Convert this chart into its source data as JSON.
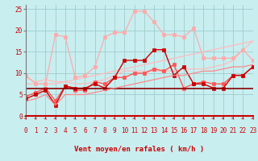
{
  "xlabel": "Vent moyen/en rafales ( km/h )",
  "xlim": [
    0,
    23
  ],
  "ylim": [
    0,
    26
  ],
  "background_color": "#c8eef0",
  "grid_color": "#a0cccc",
  "lines": [
    {
      "x": [
        0,
        1,
        2,
        3,
        4,
        5,
        6,
        7,
        8,
        9,
        10,
        11,
        12,
        13,
        14,
        15,
        16,
        17,
        18,
        19,
        20,
        21,
        22,
        23
      ],
      "y": [
        9.0,
        8.0,
        8.5,
        8.0,
        8.0,
        7.5,
        7.5,
        8.0,
        8.5,
        9.5,
        10.5,
        10.5,
        10.5,
        10.5,
        10.5,
        10.5,
        11.0,
        11.0,
        11.0,
        11.5,
        12.0,
        13.0,
        15.5,
        17.5
      ],
      "color": "#ffbbbb",
      "lw": 0.9,
      "marker": null,
      "ls": "-"
    },
    {
      "x": [
        0,
        1,
        2,
        3,
        4,
        5,
        6,
        7,
        8,
        9,
        10,
        11,
        12,
        13,
        14,
        15,
        16,
        17,
        18,
        19,
        20,
        21,
        22,
        23
      ],
      "y": [
        7.5,
        7.5,
        7.5,
        7.5,
        8.0,
        8.5,
        9.0,
        9.5,
        10.0,
        10.5,
        11.0,
        11.5,
        12.0,
        12.5,
        13.0,
        13.5,
        14.0,
        14.5,
        15.0,
        15.5,
        16.0,
        16.5,
        17.0,
        17.5
      ],
      "color": "#ffbbbb",
      "lw": 0.9,
      "marker": null,
      "ls": "-"
    },
    {
      "x": [
        0,
        1,
        2,
        3,
        4,
        5,
        6,
        7,
        8,
        9,
        10,
        11,
        12,
        13,
        14,
        15,
        16,
        17,
        18,
        19,
        20,
        21,
        22,
        23
      ],
      "y": [
        4.5,
        5.5,
        6.5,
        3.5,
        7.0,
        6.0,
        6.0,
        8.0,
        7.5,
        9.0,
        9.0,
        10.0,
        10.0,
        11.0,
        10.5,
        12.0,
        6.5,
        7.5,
        8.0,
        7.5,
        7.5,
        9.5,
        9.5,
        11.5
      ],
      "color": "#ff5555",
      "lw": 1.0,
      "marker": "s",
      "ms": 2.5,
      "ls": "-"
    },
    {
      "x": [
        0,
        1,
        2,
        3,
        4,
        5,
        6,
        7,
        8,
        9,
        10,
        11,
        12,
        13,
        14,
        15,
        16,
        17,
        18,
        19,
        20,
        21,
        22,
        23
      ],
      "y": [
        4.0,
        5.0,
        6.0,
        2.5,
        7.0,
        6.5,
        6.5,
        7.5,
        6.5,
        9.0,
        13.0,
        13.0,
        13.0,
        15.5,
        15.5,
        9.5,
        11.5,
        7.5,
        7.5,
        6.5,
        6.5,
        9.5,
        9.5,
        11.5
      ],
      "color": "#cc0000",
      "lw": 1.0,
      "marker": "s",
      "ms": 2.5,
      "ls": "-"
    },
    {
      "x": [
        0,
        1,
        2,
        3,
        4,
        5,
        6,
        7,
        8,
        9,
        10,
        11,
        12,
        13,
        14,
        15,
        16,
        17,
        18,
        19,
        20,
        21,
        22,
        23
      ],
      "y": [
        6.5,
        6.5,
        6.5,
        6.5,
        6.5,
        6.5,
        6.5,
        6.5,
        6.5,
        6.5,
        6.5,
        6.5,
        6.5,
        6.5,
        6.5,
        6.5,
        6.5,
        6.5,
        6.5,
        6.5,
        6.5,
        6.5,
        6.5,
        6.5
      ],
      "color": "#880000",
      "lw": 1.2,
      "marker": null,
      "ls": "-"
    },
    {
      "x": [
        0,
        1,
        2,
        3,
        4,
        5,
        6,
        7,
        8,
        9,
        10,
        11,
        12,
        13,
        14,
        15,
        16,
        17,
        18,
        19,
        20,
        21,
        22,
        23
      ],
      "y": [
        9.5,
        7.5,
        7.5,
        19.0,
        18.5,
        9.0,
        9.5,
        11.5,
        18.5,
        19.5,
        19.5,
        24.5,
        24.5,
        22.0,
        19.0,
        19.0,
        18.5,
        20.5,
        13.5,
        13.5,
        13.5,
        13.5,
        15.5,
        13.0
      ],
      "color": "#ffaaaa",
      "lw": 0.9,
      "marker": "s",
      "ms": 2.5,
      "ls": "-"
    },
    {
      "x": [
        0,
        1,
        2,
        3,
        4,
        5,
        6,
        7,
        8,
        9,
        10,
        11,
        12,
        13,
        14,
        15,
        16,
        17,
        18,
        19,
        20,
        21,
        22,
        23
      ],
      "y": [
        3.5,
        4.0,
        5.0,
        2.5,
        5.0,
        5.0,
        5.0,
        5.5,
        6.0,
        6.5,
        7.0,
        7.5,
        8.0,
        8.5,
        9.0,
        9.5,
        9.5,
        10.0,
        10.5,
        10.5,
        11.0,
        11.5,
        11.5,
        12.0
      ],
      "color": "#ff8888",
      "lw": 0.9,
      "marker": null,
      "ls": "-"
    }
  ],
  "yticks": [
    0,
    5,
    10,
    15,
    20,
    25
  ],
  "tick_fontsize": 5.5,
  "label_fontsize": 6.5,
  "label_color": "#cc0000",
  "arrow_color": "#cc0000"
}
